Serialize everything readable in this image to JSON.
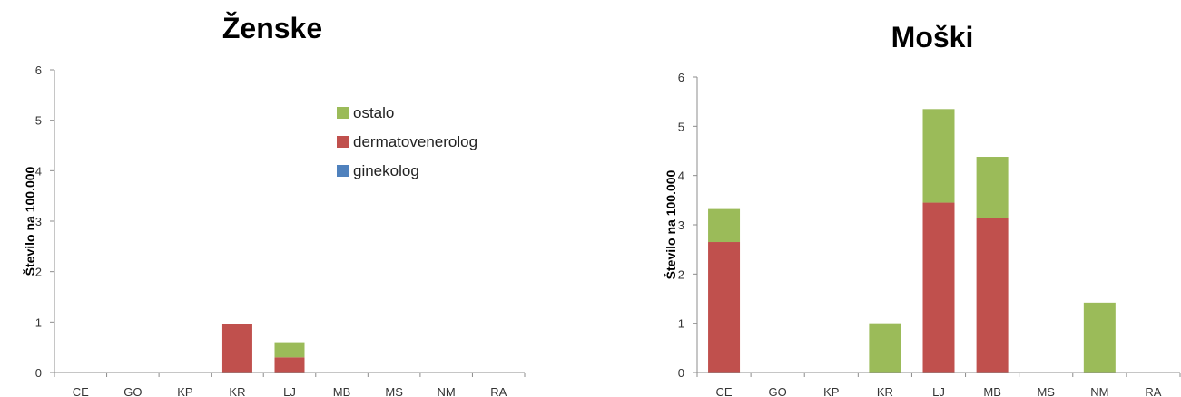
{
  "chart_data": [
    {
      "type": "bar",
      "stacked": true,
      "title": "Ženske",
      "ylabel": "Število na 100.000",
      "ylim": [
        0,
        6
      ],
      "yticks": [
        0,
        1,
        2,
        3,
        4,
        5,
        6
      ],
      "categories": [
        "CE",
        "GO",
        "KP",
        "KR",
        "LJ",
        "MB",
        "MS",
        "NM",
        "RA"
      ],
      "series": [
        {
          "name": "ginekolog",
          "color": "#4f81bd",
          "values": [
            0,
            0,
            0,
            0,
            0,
            0,
            0,
            0,
            0
          ]
        },
        {
          "name": "dermatovenerolog",
          "color": "#c0504d",
          "values": [
            0,
            0,
            0,
            0.97,
            0.3,
            0,
            0,
            0,
            0
          ]
        },
        {
          "name": "ostalo",
          "color": "#9bbb59",
          "values": [
            0,
            0,
            0,
            0,
            0.3,
            0,
            0,
            0,
            0
          ]
        }
      ],
      "legend": "inside-top-right",
      "grid": false
    },
    {
      "type": "bar",
      "stacked": true,
      "title": "Moški",
      "ylabel": "Število na 100.000",
      "ylim": [
        0,
        6
      ],
      "yticks": [
        0,
        1,
        2,
        3,
        4,
        5,
        6
      ],
      "categories": [
        "CE",
        "GO",
        "KP",
        "KR",
        "LJ",
        "MB",
        "MS",
        "NM",
        "RA"
      ],
      "series": [
        {
          "name": "ginekolog",
          "color": "#4f81bd",
          "values": [
            0,
            0,
            0,
            0,
            0,
            0,
            0,
            0,
            0
          ]
        },
        {
          "name": "dermatovenerolog",
          "color": "#c0504d",
          "values": [
            2.65,
            0,
            0,
            0,
            3.45,
            3.13,
            0,
            0,
            0
          ]
        },
        {
          "name": "ostalo",
          "color": "#9bbb59",
          "values": [
            0.67,
            0,
            0,
            1.0,
            1.9,
            1.25,
            0,
            1.42,
            0
          ]
        }
      ],
      "legend": "none",
      "grid": false
    }
  ]
}
